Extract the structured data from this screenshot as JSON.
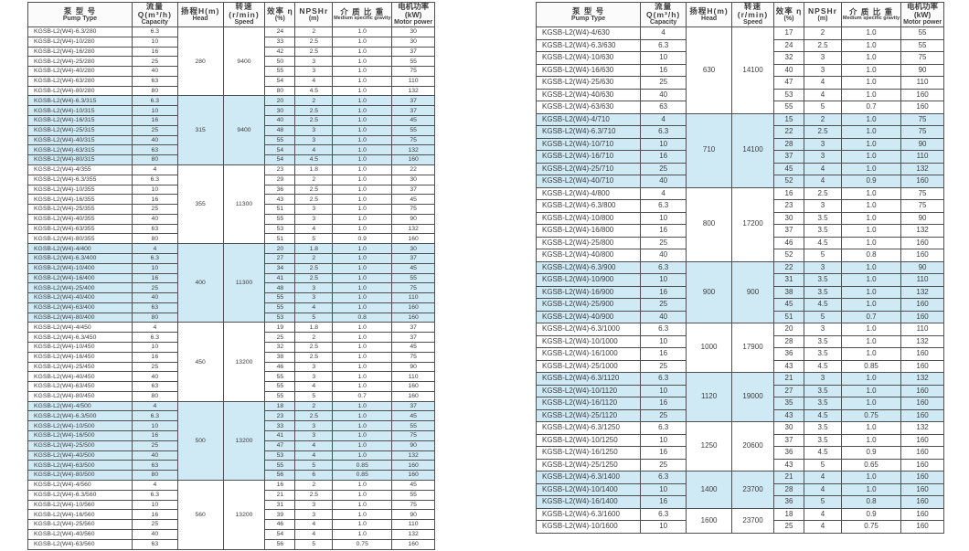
{
  "columns": [
    {
      "key": "pump-type",
      "zh": "泵 型 号",
      "en": "Pump Type"
    },
    {
      "key": "capacity",
      "zh": "流量Q(m³/h)",
      "en": "Capacity"
    },
    {
      "key": "head",
      "zh": "扬程H(m)",
      "en": "Head"
    },
    {
      "key": "speed",
      "zh": "转速(r/min)",
      "en": "Speed"
    },
    {
      "key": "efficiency",
      "zh": "效率 η",
      "en": "(%)"
    },
    {
      "key": "npshr",
      "zh": "NPSHr",
      "en": "(m)"
    },
    {
      "key": "specific-gravity",
      "zh": "介 质 比 重",
      "en": "Medium specific gravity"
    },
    {
      "key": "motor-power",
      "zh": "电机功率(kW)",
      "en": "Motor power"
    }
  ],
  "tables": [
    {
      "groups": [
        {
          "head": "280",
          "speed": "9400",
          "highlight": false,
          "rows": [
            [
              "KGSB-L2(W4)-6.3/280",
              "6.3",
              "24",
              "2",
              "1.0",
              "30"
            ],
            [
              "KGSB-L2(W4)-10/280",
              "10",
              "33",
              "2.5",
              "1.0",
              "30"
            ],
            [
              "KGSB-L2(W4)-16/280",
              "16",
              "42",
              "2.5",
              "1.0",
              "37"
            ],
            [
              "KGSB-L2(W4)-25/280",
              "25",
              "50",
              "3",
              "1.0",
              "55"
            ],
            [
              "KGSB-L2(W4)-40/280",
              "40",
              "55",
              "3",
              "1.0",
              "75"
            ],
            [
              "KGSB-L2(W4)-63/280",
              "63",
              "54",
              "4",
              "1.0",
              "110"
            ],
            [
              "KGSB-L2(W4)-80/280",
              "80",
              "80",
              "4.5",
              "1.0",
              "132"
            ]
          ]
        },
        {
          "head": "315",
          "speed": "9400",
          "highlight": true,
          "rows": [
            [
              "KGSB-L2(W4)-6.3/315",
              "6.3",
              "20",
              "2",
              "1.0",
              "37"
            ],
            [
              "KGSB-L2(W4)-10/315",
              "10",
              "30",
              "2.5",
              "1.0",
              "37"
            ],
            [
              "KGSB-L2(W4)-16/315",
              "16",
              "40",
              "2.5",
              "1.0",
              "45"
            ],
            [
              "KGSB-L2(W4)-25/315",
              "25",
              "48",
              "3",
              "1.0",
              "55"
            ],
            [
              "KGSB-L2(W4)-40/315",
              "40",
              "55",
              "3",
              "1.0",
              "75"
            ],
            [
              "KGSB-L2(W4)-63/315",
              "63",
              "54",
              "4",
              "1.0",
              "132"
            ],
            [
              "KGSB-L2(W4)-80/315",
              "80",
              "54",
              "4.5",
              "1.0",
              "160"
            ]
          ]
        },
        {
          "head": "355",
          "speed": "11300",
          "highlight": false,
          "rows": [
            [
              "KGSB-L2(W4)-4/355",
              "4",
              "23",
              "1.8",
              "1.0",
              "22"
            ],
            [
              "KGSB-L2(W4)-6.3/355",
              "6.3",
              "29",
              "2",
              "1.0",
              "30"
            ],
            [
              "KGSB-L2(W4)-10/355",
              "10",
              "36",
              "2.5",
              "1.0",
              "37"
            ],
            [
              "KGSB-L2(W4)-16/355",
              "16",
              "43",
              "2.5",
              "1.0",
              "45"
            ],
            [
              "KGSB-L2(W4)-25/355",
              "25",
              "51",
              "3",
              "1.0",
              "75"
            ],
            [
              "KGSB-L2(W4)-40/355",
              "40",
              "55",
              "3",
              "1.0",
              "90"
            ],
            [
              "KGSB-L2(W4)-63/355",
              "63",
              "53",
              "4",
              "1.0",
              "132"
            ],
            [
              "KGSB-L2(W4)-80/355",
              "80",
              "51",
              "5",
              "0.9",
              "160"
            ]
          ]
        },
        {
          "head": "400",
          "speed": "11300",
          "highlight": true,
          "rows": [
            [
              "KGSB-L2(W4)-4/400",
              "4",
              "20",
              "1.8",
              "1.0",
              "30"
            ],
            [
              "KGSB-L2(W4)-6.3/400",
              "6.3",
              "27",
              "2",
              "1.0",
              "37"
            ],
            [
              "KGSB-L2(W4)-10/400",
              "10",
              "34",
              "2.5",
              "1.0",
              "45"
            ],
            [
              "KGSB-L2(W4)-16/400",
              "16",
              "41",
              "2.5",
              "1.0",
              "55"
            ],
            [
              "KGSB-L2(W4)-25/400",
              "25",
              "48",
              "3",
              "1.0",
              "75"
            ],
            [
              "KGSB-L2(W4)-40/400",
              "40",
              "55",
              "3",
              "1.0",
              "110"
            ],
            [
              "KGSB-L2(W4)-63/400",
              "63",
              "55",
              "4",
              "1.0",
              "160"
            ],
            [
              "KGSB-L2(W4)-80/400",
              "80",
              "53",
              "5",
              "0.8",
              "160"
            ]
          ]
        },
        {
          "head": "450",
          "speed": "13200",
          "highlight": false,
          "rows": [
            [
              "KGSB-L2(W4)-4/450",
              "4",
              "19",
              "1.8",
              "1.0",
              "37"
            ],
            [
              "KGSB-L2(W4)-6.3/450",
              "6.3",
              "25",
              "2",
              "1.0",
              "37"
            ],
            [
              "KGSB-L2(W4)-10/450",
              "10",
              "32",
              "2.5",
              "1.0",
              "45"
            ],
            [
              "KGSB-L2(W4)-16/450",
              "16",
              "38",
              "2.5",
              "1.0",
              "75"
            ],
            [
              "KGSB-L2(W4)-25/450",
              "25",
              "46",
              "3",
              "1.0",
              "90"
            ],
            [
              "KGSB-L2(W4)-40/450",
              "40",
              "55",
              "3",
              "1.0",
              "110"
            ],
            [
              "KGSB-L2(W4)-63/450",
              "63",
              "55",
              "4",
              "1.0",
              "160"
            ],
            [
              "KGSB-L2(W4)-80/450",
              "80",
              "55",
              "5",
              "0.7",
              "160"
            ]
          ]
        },
        {
          "head": "500",
          "speed": "13200",
          "highlight": true,
          "rows": [
            [
              "KGSB-L2(W4)-4/500",
              "4",
              "18",
              "2",
              "1.0",
              "37"
            ],
            [
              "KGSB-L2(W4)-6.3/500",
              "6.3",
              "23",
              "2.5",
              "1.0",
              "45"
            ],
            [
              "KGSB-L2(W4)-10/500",
              "10",
              "33",
              "3",
              "1.0",
              "55"
            ],
            [
              "KGSB-L2(W4)-16/500",
              "16",
              "41",
              "3",
              "1.0",
              "75"
            ],
            [
              "KGSB-L2(W4)-25/500",
              "25",
              "47",
              "4",
              "1.0",
              "90"
            ],
            [
              "KGSB-L2(W4)-40/500",
              "40",
              "53",
              "4",
              "1.0",
              "132"
            ],
            [
              "KGSB-L2(W4)-63/500",
              "63",
              "55",
              "5",
              "0.85",
              "160"
            ],
            [
              "KGSB-L2(W4)-80/500",
              "80",
              "56",
              "6",
              "0.85",
              "160"
            ]
          ]
        },
        {
          "head": "560",
          "speed": "13200",
          "highlight": false,
          "rows": [
            [
              "KGSB-L2(W4)-4/560",
              "4",
              "16",
              "2",
              "1.0",
              "45"
            ],
            [
              "KGSB-L2(W4)-6.3/560",
              "6.3",
              "21",
              "2.5",
              "1.0",
              "55"
            ],
            [
              "KGSB-L2(W4)-10/560",
              "10",
              "31",
              "3",
              "1.0",
              "75"
            ],
            [
              "KGSB-L2(W4)-16/560",
              "16",
              "39",
              "3",
              "1.0",
              "90"
            ],
            [
              "KGSB-L2(W4)-25/560",
              "25",
              "46",
              "4",
              "1.0",
              "110"
            ],
            [
              "KGSB-L2(W4)-40/560",
              "40",
              "54",
              "4",
              "1.0",
              "132"
            ],
            [
              "KGSB-L2(W4)-63/560",
              "63",
              "56",
              "5",
              "0.75",
              "160"
            ]
          ]
        }
      ]
    },
    {
      "groups": [
        {
          "head": "630",
          "speed": "14100",
          "highlight": false,
          "rows": [
            [
              "KGSB-L2(W4)-4/630",
              "4",
              "17",
              "2",
              "1.0",
              "55"
            ],
            [
              "KGSB-L2(W4)-6.3/630",
              "6.3",
              "24",
              "2.5",
              "1.0",
              "55"
            ],
            [
              "KGSB-L2(W4)-10/630",
              "10",
              "32",
              "3",
              "1.0",
              "75"
            ],
            [
              "KGSB-L2(W4)-16/630",
              "16",
              "40",
              "3",
              "1.0",
              "90"
            ],
            [
              "KGSB-L2(W4)-25/630",
              "25",
              "47",
              "4",
              "1.0",
              "110"
            ],
            [
              "KGSB-L2(W4)-40/630",
              "40",
              "53",
              "4",
              "1.0",
              "160"
            ],
            [
              "KGSB-L2(W4)-63/630",
              "63",
              "55",
              "5",
              "0.7",
              "160"
            ]
          ]
        },
        {
          "head": "710",
          "speed": "14100",
          "highlight": true,
          "rows": [
            [
              "KGSB-L2(W4)-4/710",
              "4",
              "15",
              "2",
              "1.0",
              "75"
            ],
            [
              "KGSB-L2(W4)-6.3/710",
              "6.3",
              "22",
              "2.5",
              "1.0",
              "75"
            ],
            [
              "KGSB-L2(W4)-10/710",
              "10",
              "28",
              "3",
              "1.0",
              "90"
            ],
            [
              "KGSB-L2(W4)-16/710",
              "16",
              "37",
              "3",
              "1.0",
              "110"
            ],
            [
              "KGSB-L2(W4)-25/710",
              "25",
              "45",
              "4",
              "1.0",
              "132"
            ],
            [
              "KGSB-L2(W4)-40/710",
              "40",
              "52",
              "4",
              "0.9",
              "160"
            ]
          ]
        },
        {
          "head": "800",
          "speed": "17200",
          "highlight": false,
          "rows": [
            [
              "KGSB-L2(W4)-4/800",
              "4",
              "16",
              "2.5",
              "1.0",
              "75"
            ],
            [
              "KGSB-L2(W4)-6.3/800",
              "6.3",
              "23",
              "3",
              "1.0",
              "75"
            ],
            [
              "KGSB-L2(W4)-10/800",
              "10",
              "30",
              "3.5",
              "1.0",
              "90"
            ],
            [
              "KGSB-L2(W4)-16/800",
              "16",
              "37",
              "3.5",
              "1.0",
              "132"
            ],
            [
              "KGSB-L2(W4)-25/800",
              "25",
              "46",
              "4.5",
              "1.0",
              "160"
            ],
            [
              "KGSB-L2(W4)-40/800",
              "40",
              "52",
              "5",
              "0.8",
              "160"
            ]
          ]
        },
        {
          "head": "900",
          "speed": "900",
          "highlight": true,
          "rows": [
            [
              "KGSB-L2(W4)-6.3/900",
              "6.3",
              "22",
              "3",
              "1.0",
              "90"
            ],
            [
              "KGSB-L2(W4)-10/900",
              "10",
              "31",
              "3.5",
              "1.0",
              "110"
            ],
            [
              "KGSB-L2(W4)-16/900",
              "16",
              "38",
              "3.5",
              "1.0",
              "132"
            ],
            [
              "KGSB-L2(W4)-25/900",
              "25",
              "45",
              "4.5",
              "1.0",
              "160"
            ],
            [
              "KGSB-L2(W4)-40/900",
              "40",
              "51",
              "5",
              "0.7",
              "160"
            ]
          ]
        },
        {
          "head": "1000",
          "speed": "17900",
          "highlight": false,
          "rows": [
            [
              "KGSB-L2(W4)-6.3/1000",
              "6.3",
              "20",
              "3",
              "1.0",
              "110"
            ],
            [
              "KGSB-L2(W4)-10/1000",
              "10",
              "28",
              "3.5",
              "1.0",
              "132"
            ],
            [
              "KGSB-L2(W4)-16/1000",
              "16",
              "36",
              "3.5",
              "1.0",
              "160"
            ],
            [
              "KGSB-L2(W4)-25/1000",
              "25",
              "43",
              "4.5",
              "0.85",
              "160"
            ]
          ]
        },
        {
          "head": "1120",
          "speed": "19000",
          "highlight": true,
          "rows": [
            [
              "KGSB-L2(W4)-6.3/1120",
              "6.3",
              "21",
              "3",
              "1.0",
              "132"
            ],
            [
              "KGSB-L2(W4)-10/1120",
              "10",
              "27",
              "3.5",
              "1.0",
              "160"
            ],
            [
              "KGSB-L2(W4)-16/1120",
              "16",
              "35",
              "3.5",
              "1.0",
              "160"
            ],
            [
              "KGSB-L2(W4)-25/1120",
              "25",
              "43",
              "4.5",
              "0.75",
              "160"
            ]
          ]
        },
        {
          "head": "1250",
          "speed": "20600",
          "highlight": false,
          "rows": [
            [
              "KGSB-L2(W4)-6.3/1250",
              "6.3",
              "30",
              "3.5",
              "1.0",
              "132"
            ],
            [
              "KGSB-L2(W4)-10/1250",
              "10",
              "37",
              "3.5",
              "1.0",
              "160"
            ],
            [
              "KGSB-L2(W4)-16/1250",
              "16",
              "36",
              "4.5",
              "0.9",
              "160"
            ],
            [
              "KGSB-L2(W4)-25/1250",
              "25",
              "43",
              "5",
              "0.65",
              "160"
            ]
          ]
        },
        {
          "head": "1400",
          "speed": "23700",
          "highlight": true,
          "rows": [
            [
              "KGSB-L2(W4)-6.3/1400",
              "6.3",
              "21",
              "4",
              "1.0",
              "160"
            ],
            [
              "KGSB-L2(W4)-10/1400",
              "10",
              "28",
              "4",
              "1.0",
              "160"
            ],
            [
              "KGSB-L2(W4)-16/1400",
              "16",
              "36",
              "5",
              "0.8",
              "160"
            ]
          ]
        },
        {
          "head": "1600",
          "speed": "23700",
          "highlight": false,
          "rows": [
            [
              "KGSB-L2(W4)-6.3/1600",
              "6.3",
              "18",
              "4",
              "0.9",
              "160"
            ],
            [
              "KGSB-L2(W4)-10/1600",
              "10",
              "25",
              "4",
              "0.75",
              "160"
            ]
          ]
        }
      ]
    }
  ]
}
